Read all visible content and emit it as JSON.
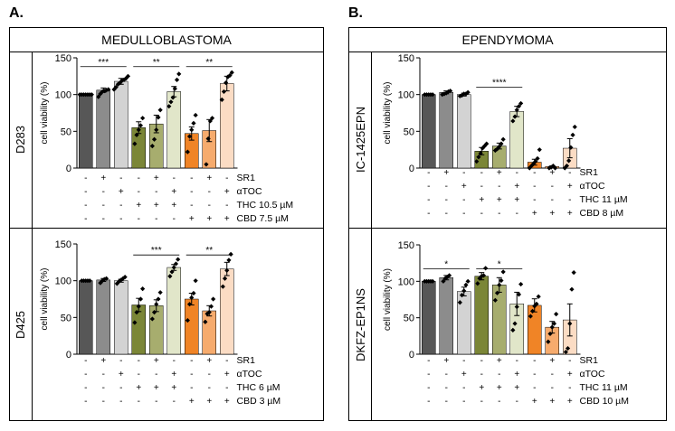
{
  "panels": [
    {
      "letter": "A.",
      "title": "MEDULLOBLASTOMA"
    },
    {
      "letter": "B.",
      "title": "EPENDYMOMA"
    }
  ],
  "colors": {
    "bars": [
      "#575757",
      "#8c8c8c",
      "#d3d3d3",
      "#7b8637",
      "#a7ad6e",
      "#e1e6c9",
      "#f08426",
      "#f6ab6d",
      "#fbdcc4"
    ],
    "axis": "#000000"
  },
  "chart_data": [
    {
      "id": "D283",
      "type": "bar",
      "cell_line": "D283",
      "ylabel": "cell viability (%)",
      "ylim": [
        0,
        150
      ],
      "yticks": [
        0,
        50,
        100,
        150
      ],
      "values": [
        100,
        106,
        118,
        55,
        60,
        104,
        47,
        51,
        115
      ],
      "errors": [
        0,
        3,
        4,
        8,
        12,
        7,
        9,
        15,
        10
      ],
      "points": [
        [
          100,
          100,
          100,
          100,
          100,
          100,
          100
        ],
        [
          97,
          101,
          104,
          105,
          106,
          107
        ],
        [
          107,
          110,
          114,
          116,
          119,
          120,
          122,
          125
        ],
        [
          33,
          45,
          52,
          58,
          68
        ],
        [
          30,
          39,
          52,
          69,
          79
        ],
        [
          84,
          90,
          96,
          108,
          120,
          128
        ],
        [
          22,
          43,
          52,
          61,
          72
        ],
        [
          5,
          40,
          64,
          68
        ],
        [
          93,
          104,
          116,
          124,
          126,
          130
        ]
      ],
      "significance": [
        {
          "from": 0,
          "to": 2,
          "label": "***",
          "y": 138
        },
        {
          "from": 3,
          "to": 5,
          "label": "**",
          "y": 138
        },
        {
          "from": 6,
          "to": 8,
          "label": "**",
          "y": 138
        }
      ],
      "treatment_rows": [
        {
          "label": "SR1",
          "signs": [
            "-",
            "+",
            "-",
            "-",
            "+",
            "-",
            "-",
            "+",
            "-"
          ]
        },
        {
          "label": "αTOC",
          "signs": [
            "-",
            "-",
            "+",
            "-",
            "-",
            "+",
            "-",
            "-",
            "+"
          ]
        },
        {
          "label": "THC 10.5 µM",
          "signs": [
            "-",
            "-",
            "-",
            "+",
            "+",
            "+",
            "-",
            "-",
            "-"
          ]
        },
        {
          "label": "CBD 7.5 µM",
          "signs": [
            "-",
            "-",
            "-",
            "-",
            "-",
            "-",
            "+",
            "+",
            "+"
          ]
        }
      ]
    },
    {
      "id": "IC-1425EPN",
      "type": "bar",
      "cell_line": "IC-1425EPN",
      "ylabel": "cell viability (%)",
      "ylim": [
        0,
        150
      ],
      "yticks": [
        0,
        50,
        100,
        150
      ],
      "values": [
        100,
        103,
        100,
        23,
        30,
        77,
        8,
        2,
        27
      ],
      "errors": [
        0,
        2,
        2,
        5,
        4,
        7,
        4,
        1,
        13
      ],
      "points": [
        [
          100,
          100,
          100,
          100,
          100
        ],
        [
          100,
          101,
          102,
          104,
          105
        ],
        [
          98,
          99,
          101,
          101,
          103
        ],
        [
          9,
          15,
          20,
          27,
          30,
          33
        ],
        [
          24,
          26,
          29,
          33,
          39
        ],
        [
          64,
          70,
          79,
          84,
          88
        ],
        [
          0,
          3,
          6,
          9,
          13,
          25
        ],
        [
          0,
          1,
          3,
          0
        ],
        [
          0,
          3,
          10,
          28,
          45,
          56
        ]
      ],
      "significance": [
        {
          "from": 3,
          "to": 5,
          "label": "****",
          "y": 110
        }
      ],
      "treatment_rows": [
        {
          "label": "SR1",
          "signs": [
            "-",
            "+",
            "-",
            "-",
            "+",
            "-",
            "-",
            "+",
            "-"
          ]
        },
        {
          "label": "αTOC",
          "signs": [
            "-",
            "-",
            "+",
            "-",
            "-",
            "+",
            "-",
            "-",
            "+"
          ]
        },
        {
          "label": "THC 11 µM",
          "signs": [
            "-",
            "-",
            "-",
            "+",
            "+",
            "+",
            "-",
            "-",
            "-"
          ]
        },
        {
          "label": "CBD 8 µM",
          "signs": [
            "-",
            "-",
            "-",
            "-",
            "-",
            "-",
            "+",
            "+",
            "+"
          ]
        }
      ]
    },
    {
      "id": "D425",
      "type": "bar",
      "cell_line": "D425",
      "ylabel": "cell viability (%)",
      "ylim": [
        0,
        150
      ],
      "yticks": [
        0,
        50,
        100,
        150
      ],
      "values": [
        100,
        101,
        100,
        67,
        66,
        118,
        75,
        59,
        116
      ],
      "errors": [
        0,
        2,
        2,
        9,
        8,
        4,
        8,
        7,
        9
      ],
      "points": [
        [
          100,
          100,
          100,
          100,
          100
        ],
        [
          97,
          100,
          102,
          103
        ],
        [
          96,
          99,
          101,
          103,
          105
        ],
        [
          43,
          57,
          65,
          75,
          89
        ],
        [
          48,
          57,
          68,
          75,
          84
        ],
        [
          106,
          112,
          118,
          123,
          129
        ],
        [
          46,
          68,
          77,
          83,
          100
        ],
        [
          44,
          55,
          57,
          65,
          75
        ],
        [
          92,
          103,
          114,
          128,
          136
        ]
      ],
      "significance": [
        {
          "from": 3,
          "to": 5,
          "label": "***",
          "y": 135
        },
        {
          "from": 6,
          "to": 8,
          "label": "**",
          "y": 135
        }
      ],
      "treatment_rows": [
        {
          "label": "SR1",
          "signs": [
            "-",
            "+",
            "-",
            "-",
            "+",
            "-",
            "-",
            "+",
            "-"
          ]
        },
        {
          "label": "αTOC",
          "signs": [
            "-",
            "-",
            "+",
            "-",
            "-",
            "+",
            "-",
            "-",
            "+"
          ]
        },
        {
          "label": "THC 6 µM",
          "signs": [
            "-",
            "-",
            "-",
            "+",
            "+",
            "+",
            "-",
            "-",
            "-"
          ]
        },
        {
          "label": "CBD 3 µM",
          "signs": [
            "-",
            "-",
            "-",
            "-",
            "-",
            "-",
            "+",
            "+",
            "+"
          ]
        }
      ]
    },
    {
      "id": "DKFZ-EP1NS",
      "type": "bar",
      "cell_line": "DKFZ-EP1NS",
      "ylabel": "cell viability (%)",
      "ylim": [
        0,
        150
      ],
      "yticks": [
        0,
        50,
        100,
        150
      ],
      "values": [
        100,
        105,
        86,
        107,
        95,
        69,
        67,
        37,
        47
      ],
      "errors": [
        0,
        3,
        6,
        5,
        10,
        16,
        9,
        8,
        22
      ],
      "points": [
        [
          100,
          100,
          100,
          100,
          100
        ],
        [
          100,
          104,
          106,
          108
        ],
        [
          71,
          81,
          87,
          95,
          100
        ],
        [
          97,
          104,
          107,
          108,
          118
        ],
        [
          74,
          84,
          95,
          101,
          113
        ],
        [
          33,
          42,
          65,
          82,
          96
        ],
        [
          52,
          59,
          66,
          69,
          79
        ],
        [
          17,
          28,
          37,
          42,
          55
        ],
        [
          3,
          8,
          42,
          89,
          112
        ]
      ],
      "significance": [
        {
          "from": 0,
          "to": 2,
          "label": "*",
          "y": 117
        },
        {
          "from": 3,
          "to": 5,
          "label": "*",
          "y": 117
        }
      ],
      "treatment_rows": [
        {
          "label": "SR1",
          "signs": [
            "-",
            "+",
            "-",
            "-",
            "+",
            "-",
            "-",
            "+",
            "-"
          ]
        },
        {
          "label": "αTOC",
          "signs": [
            "-",
            "-",
            "+",
            "-",
            "-",
            "+",
            "-",
            "-",
            "+"
          ]
        },
        {
          "label": "THC 11 µM",
          "signs": [
            "-",
            "-",
            "-",
            "+",
            "+",
            "+",
            "-",
            "-",
            "-"
          ]
        },
        {
          "label": "CBD 10 µM",
          "signs": [
            "-",
            "-",
            "-",
            "-",
            "-",
            "-",
            "+",
            "+",
            "+"
          ]
        }
      ]
    }
  ]
}
